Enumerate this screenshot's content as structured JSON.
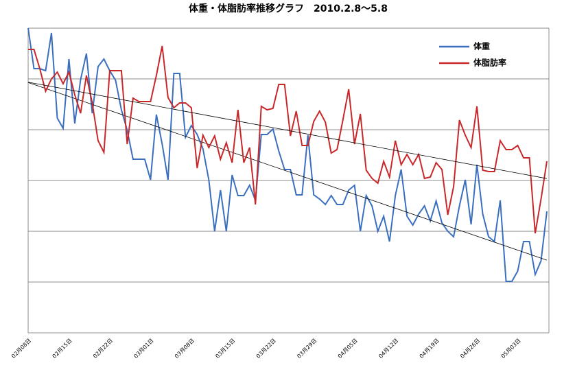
{
  "chart_data": {
    "type": "line",
    "title": "体重・体脂肪率推移グラフ　2010.2.8～5.8",
    "categories": [
      "02月08日",
      null,
      null,
      null,
      null,
      null,
      null,
      "02月15日",
      null,
      null,
      null,
      null,
      null,
      null,
      "02月22日",
      null,
      null,
      null,
      null,
      null,
      null,
      "03月01日",
      null,
      null,
      null,
      null,
      null,
      null,
      "03月08日",
      null,
      null,
      null,
      null,
      null,
      null,
      "03月15日",
      null,
      null,
      null,
      null,
      null,
      null,
      "03月22日",
      null,
      null,
      null,
      null,
      null,
      null,
      "03月29日",
      null,
      null,
      null,
      null,
      null,
      null,
      "04月05日",
      null,
      null,
      null,
      null,
      null,
      null,
      "04月12日",
      null,
      null,
      null,
      null,
      null,
      null,
      "04月19日",
      null,
      null,
      null,
      null,
      null,
      null,
      "04月26日",
      null,
      null,
      null,
      null,
      null,
      null,
      "05月03日",
      null,
      null,
      null,
      null,
      null
    ],
    "series": [
      {
        "name": "体重",
        "color": "#3a6fc0",
        "values": [
          444,
          385,
          385,
          382,
          437,
          313,
          298,
          399,
          305,
          369,
          407,
          320,
          388,
          399,
          382,
          368,
          325,
          295,
          253,
          253,
          253,
          223,
          318,
          275,
          223,
          378,
          378,
          285,
          302,
          289,
          268,
          223,
          148,
          208,
          148,
          230,
          200,
          200,
          215,
          193,
          289,
          289,
          297,
          265,
          238,
          238,
          201,
          201,
          288,
          201,
          195,
          187,
          200,
          187,
          187,
          208,
          215,
          148,
          200,
          185,
          148,
          170,
          133,
          200,
          238,
          170,
          157,
          173,
          185,
          163,
          192,
          160,
          148,
          140,
          185,
          223,
          158,
          245,
          173,
          140,
          133,
          193,
          75,
          75,
          90,
          133,
          133,
          85,
          105,
          177
        ]
      },
      {
        "name": "体脂肪率",
        "color": "#c8282a",
        "values": [
          413,
          413,
          385,
          352,
          370,
          380,
          363,
          380,
          347,
          320,
          375,
          335,
          280,
          263,
          382,
          382,
          382,
          275,
          342,
          337,
          337,
          337,
          375,
          418,
          343,
          328,
          335,
          335,
          328,
          240,
          288,
          270,
          287,
          253,
          277,
          248,
          325,
          248,
          270,
          187,
          330,
          325,
          327,
          362,
          362,
          287,
          323,
          273,
          273,
          308,
          323,
          307,
          262,
          267,
          310,
          355,
          275,
          319,
          237,
          225,
          218,
          250,
          227,
          280,
          245,
          260,
          245,
          260,
          225,
          227,
          248,
          238,
          172,
          213,
          310,
          288,
          270,
          330,
          237,
          235,
          235,
          280,
          267,
          267,
          273,
          255,
          255,
          145,
          195,
          250
        ]
      }
    ],
    "ylim": [
      0,
      444
    ],
    "yticks": [
      0,
      74,
      148,
      222,
      296,
      370,
      444
    ],
    "grid": true,
    "trendline": true
  }
}
